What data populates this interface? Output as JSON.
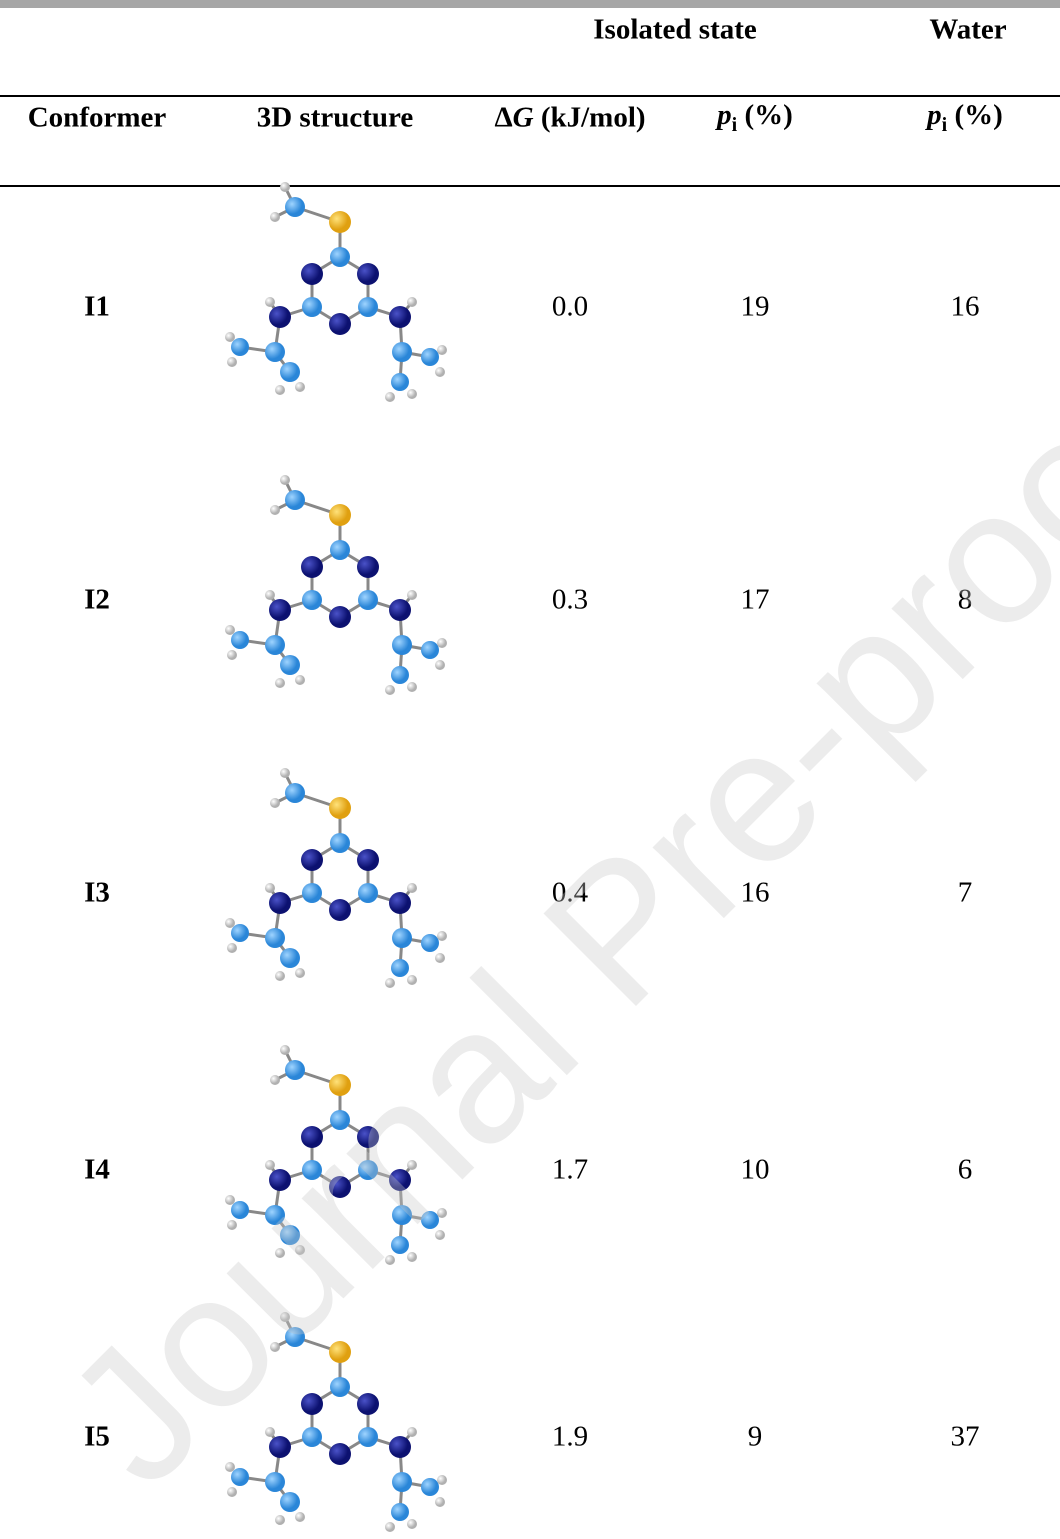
{
  "header": {
    "group_isolated": "Isolated state",
    "group_water": "Water",
    "columns": [
      [
        "Conformer"
      ],
      [
        "3D structure"
      ],
      [
        "Δ",
        "G",
        " (kJ/mol)"
      ],
      [
        "p",
        "i",
        " (%)"
      ],
      [
        "p",
        "i",
        " (%)"
      ]
    ]
  },
  "rows": [
    [
      "I1",
      "0.0",
      "19",
      "16"
    ],
    [
      "I2",
      "0.3",
      "17",
      "8"
    ],
    [
      "I3",
      "0.4",
      "16",
      "7"
    ],
    [
      "I4",
      "1.7",
      "10",
      "6"
    ],
    [
      "I5",
      "1.9",
      "9",
      "37"
    ]
  ],
  "watermark": "Journal Pre-proof"
}
